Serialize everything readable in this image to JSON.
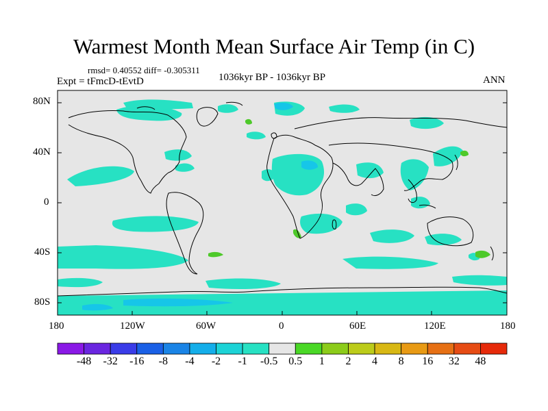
{
  "title": "Warmest Month Mean Surface Air Temp (in C)",
  "stats": "rmsd= 0.40552 diff= -0.305311",
  "experiment": "Expt = tFmcD-tEvtD",
  "period": "1036kyr BP - 1036kyr BP",
  "season": "ANN",
  "y_axis": {
    "labels": [
      "80N",
      "40N",
      "0",
      "40S",
      "80S"
    ]
  },
  "x_axis": {
    "labels": [
      "180",
      "120W",
      "60W",
      "0",
      "60E",
      "120E",
      "180"
    ]
  },
  "colors": {
    "background_field": "#e6e6e6",
    "neg_small": "#27e1c3",
    "neg_mid": "#16c6e8",
    "pos_small": "#4ec92a",
    "coast": "#000000"
  },
  "colorbar": {
    "labels": [
      "-48",
      "-32",
      "-16",
      "-8",
      "-4",
      "-2",
      "-1",
      "-0.5",
      "0.5",
      "1",
      "2",
      "4",
      "8",
      "16",
      "32",
      "48"
    ],
    "colors": [
      "#8a19e6",
      "#6a26e0",
      "#3a3ce8",
      "#1a60e6",
      "#1a84e6",
      "#14aeea",
      "#1cd3d6",
      "#27e1c3",
      "#e6e6e6",
      "#4ad826",
      "#8ccc1a",
      "#bccc1a",
      "#d8b814",
      "#e89a14",
      "#e67014",
      "#e64c14",
      "#e62a0a"
    ]
  }
}
